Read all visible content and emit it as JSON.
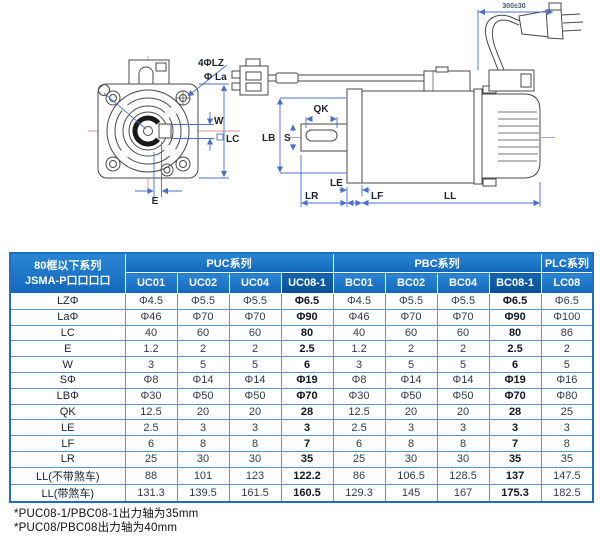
{
  "drawing": {
    "labels": {
      "front_bolt": "4ΦLZ",
      "front_la": "Φ La",
      "front_w": "W",
      "front_lc": "LC",
      "front_e": "E",
      "side_qk": "QK",
      "side_lb": "LB",
      "side_s": "S",
      "side_le": "LE",
      "side_lr": "LR",
      "side_lf": "LF",
      "side_ll": "LL",
      "cable": "300±30"
    }
  },
  "table": {
    "corner_header": {
      "line1": "80框以下系列",
      "line2": "JSMA-P口口口口"
    },
    "series": [
      {
        "label": "PUC系列",
        "span": 4
      },
      {
        "label": "PBC系列",
        "span": 4
      },
      {
        "label": "PLC系列",
        "span": 1
      }
    ],
    "models": [
      "UC01",
      "UC02",
      "UC04",
      "UC08-1",
      "BC01",
      "BC02",
      "BC04",
      "BC08-1",
      "LC08"
    ],
    "highlighted_models": [
      "UC08-1",
      "BC08-1"
    ],
    "rows": [
      {
        "label": "LZΦ",
        "values": [
          "Φ4.5",
          "Φ5.5",
          "Φ5.5",
          "Φ6.5",
          "Φ4.5",
          "Φ5.5",
          "Φ5.5",
          "Φ6.5",
          "Φ6.5"
        ]
      },
      {
        "label": "LaΦ",
        "values": [
          "Φ46",
          "Φ70",
          "Φ70",
          "Φ90",
          "Φ46",
          "Φ70",
          "Φ70",
          "Φ90",
          "Φ100"
        ]
      },
      {
        "label": "LC",
        "values": [
          "40",
          "60",
          "60",
          "80",
          "40",
          "60",
          "60",
          "80",
          "86"
        ]
      },
      {
        "label": "E",
        "values": [
          "1.2",
          "2",
          "2",
          "2.5",
          "1.2",
          "2",
          "2",
          "2.5",
          "2"
        ]
      },
      {
        "label": "W",
        "values": [
          "3",
          "5",
          "5",
          "6",
          "3",
          "5",
          "5",
          "6",
          "5"
        ]
      },
      {
        "label": "SΦ",
        "values": [
          "Φ8",
          "Φ14",
          "Φ14",
          "Φ19",
          "Φ8",
          "Φ14",
          "Φ14",
          "Φ19",
          "Φ16"
        ]
      },
      {
        "label": "LBΦ",
        "values": [
          "Φ30",
          "Φ50",
          "Φ50",
          "Φ70",
          "Φ30",
          "Φ50",
          "Φ50",
          "Φ70",
          "Φ80"
        ]
      },
      {
        "label": "QK",
        "values": [
          "12.5",
          "20",
          "20",
          "28",
          "12.5",
          "20",
          "20",
          "28",
          "25"
        ]
      },
      {
        "label": "LE",
        "values": [
          "2.5",
          "3",
          "3",
          "3",
          "2.5",
          "3",
          "3",
          "3",
          "3"
        ]
      },
      {
        "label": "LF",
        "values": [
          "6",
          "8",
          "8",
          "7",
          "6",
          "8",
          "8",
          "7",
          "8"
        ]
      },
      {
        "label": "LR",
        "values": [
          "25",
          "30",
          "30",
          "35",
          "25",
          "30",
          "30",
          "35",
          "35"
        ]
      },
      {
        "label": "LL(不带煞车)",
        "values": [
          "88",
          "101",
          "123",
          "122.2",
          "86",
          "106.5",
          "128.5",
          "137",
          "147.5"
        ]
      },
      {
        "label": "LL(带煞车)",
        "values": [
          "131.3",
          "139.5",
          "161.5",
          "160.5",
          "129.3",
          "145",
          "167",
          "175.3",
          "182.5"
        ]
      }
    ],
    "footnotes": [
      "*PUC08-1/PBC08-1出力轴为35mm",
      "*PUC08/PBC08出力轴为40mm"
    ],
    "colors": {
      "header_blue": "#1b7ccd",
      "header_highlight": "#0e5ea6",
      "grid_blue": "#5596d2",
      "border_blue": "#1f6fc4"
    }
  }
}
